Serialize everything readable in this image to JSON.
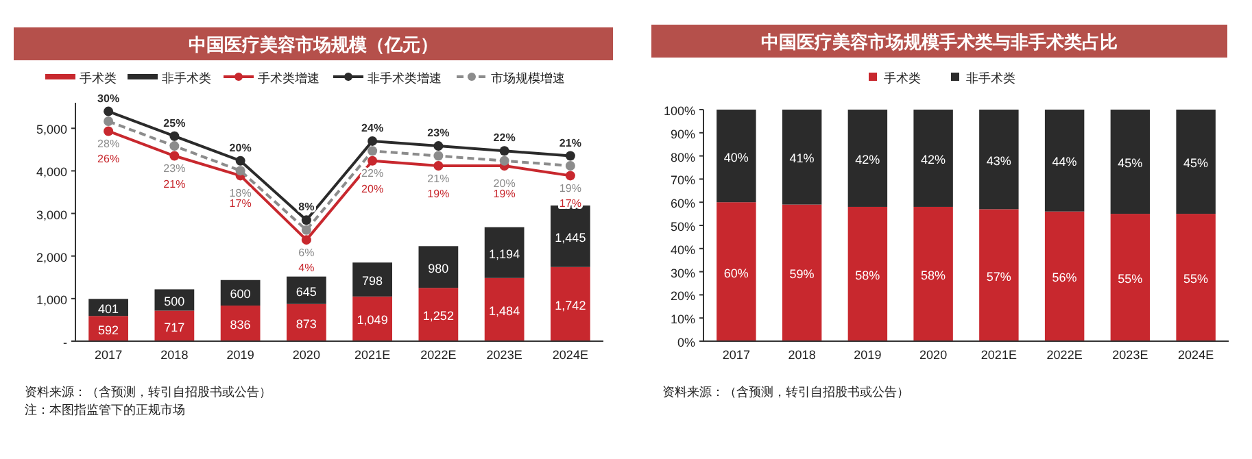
{
  "chart_data": [
    {
      "type": "bar",
      "title": "中国医疗美容市场规模（亿元）",
      "stacked": true,
      "legend": "top",
      "marker": "circle",
      "categories": [
        "2017",
        "2018",
        "2019",
        "2020",
        "2021E",
        "2022E",
        "2023E",
        "2024E"
      ],
      "ylim": [
        0,
        5600
      ],
      "yticks": [
        {
          "value": 0,
          "label": "-"
        },
        {
          "value": 1000,
          "label": "1,000"
        },
        {
          "value": 2000,
          "label": "2,000"
        },
        {
          "value": 3000,
          "label": "3,000"
        },
        {
          "value": 4000,
          "label": "4,000"
        },
        {
          "value": 5000,
          "label": "5,000"
        }
      ],
      "y2lim": [
        -16.5,
        31.75
      ],
      "series": [
        {
          "name": "手术类",
          "color": "#c8282e",
          "values": [
            592,
            717,
            836,
            873,
            1049,
            1252,
            1484,
            1742
          ],
          "value_labels": [
            "592",
            "717",
            "836",
            "873",
            "1,049",
            "1,252",
            "1,484",
            "1,742"
          ]
        },
        {
          "name": "非手术类",
          "color": "#2b2b2b",
          "values": [
            401,
            500,
            600,
            645,
            798,
            980,
            1194,
            1445
          ],
          "value_labels": [
            "401",
            "500",
            "600",
            "645",
            "798",
            "980",
            "1,194",
            "1,445"
          ]
        },
        {
          "name": "手术类增速",
          "type": "line",
          "axis": "y2",
          "color": "#c8282e",
          "line_style": "solid",
          "values": [
            26,
            21,
            17,
            4,
            20,
            19,
            19,
            17
          ],
          "value_labels": [
            "26%",
            "21%",
            "17%",
            "4%",
            "20%",
            "19%",
            "19%",
            "17%"
          ]
        },
        {
          "name": "非手术类增速",
          "type": "line",
          "axis": "y2",
          "color": "#2b2b2b",
          "line_style": "solid",
          "values": [
            30,
            25,
            20,
            8,
            24,
            23,
            22,
            21
          ],
          "value_labels": [
            "30%",
            "25%",
            "20%",
            "8%",
            "24%",
            "23%",
            "22%",
            "21%"
          ]
        },
        {
          "name": "市场规模增速",
          "type": "line",
          "axis": "y2",
          "color": "#8c8c8c",
          "line_style": "dashed",
          "values": [
            28,
            23,
            18,
            6,
            22,
            21,
            20,
            19
          ],
          "value_labels": [
            "28%",
            "23%",
            "18%",
            "6%",
            "22%",
            "21%",
            "20%",
            "19%"
          ]
        }
      ],
      "annotations": [
        "资料来源：（含预测，转引自招股书或公告）",
        "注：本图指监管下的正规市场"
      ]
    },
    {
      "type": "bar",
      "title": "中国医疗美容市场规模手术类与非手术类占比",
      "stacked": true,
      "legend": "top",
      "categories": [
        "2017",
        "2018",
        "2019",
        "2020",
        "2021E",
        "2022E",
        "2023E",
        "2024E"
      ],
      "ylim": [
        0,
        100
      ],
      "yticks": [
        {
          "value": 0,
          "label": "0%"
        },
        {
          "value": 10,
          "label": "10%"
        },
        {
          "value": 20,
          "label": "20%"
        },
        {
          "value": 30,
          "label": "30%"
        },
        {
          "value": 40,
          "label": "40%"
        },
        {
          "value": 50,
          "label": "50%"
        },
        {
          "value": 60,
          "label": "60%"
        },
        {
          "value": 70,
          "label": "70%"
        },
        {
          "value": 80,
          "label": "80%"
        },
        {
          "value": 90,
          "label": "90%"
        },
        {
          "value": 100,
          "label": "100%"
        }
      ],
      "series": [
        {
          "name": "手术类",
          "color": "#c8282e",
          "values": [
            60,
            59,
            58,
            58,
            57,
            56,
            55,
            55
          ],
          "value_labels": [
            "60%",
            "59%",
            "58%",
            "58%",
            "57%",
            "56%",
            "55%",
            "55%"
          ]
        },
        {
          "name": "非手术类",
          "color": "#2b2b2b",
          "values": [
            40,
            41,
            42,
            42,
            43,
            44,
            45,
            45
          ],
          "value_labels": [
            "40%",
            "41%",
            "42%",
            "42%",
            "43%",
            "44%",
            "45%",
            "45%"
          ]
        }
      ],
      "annotations": [
        "资料来源：（含预测，转引自招股书或公告）"
      ]
    }
  ]
}
